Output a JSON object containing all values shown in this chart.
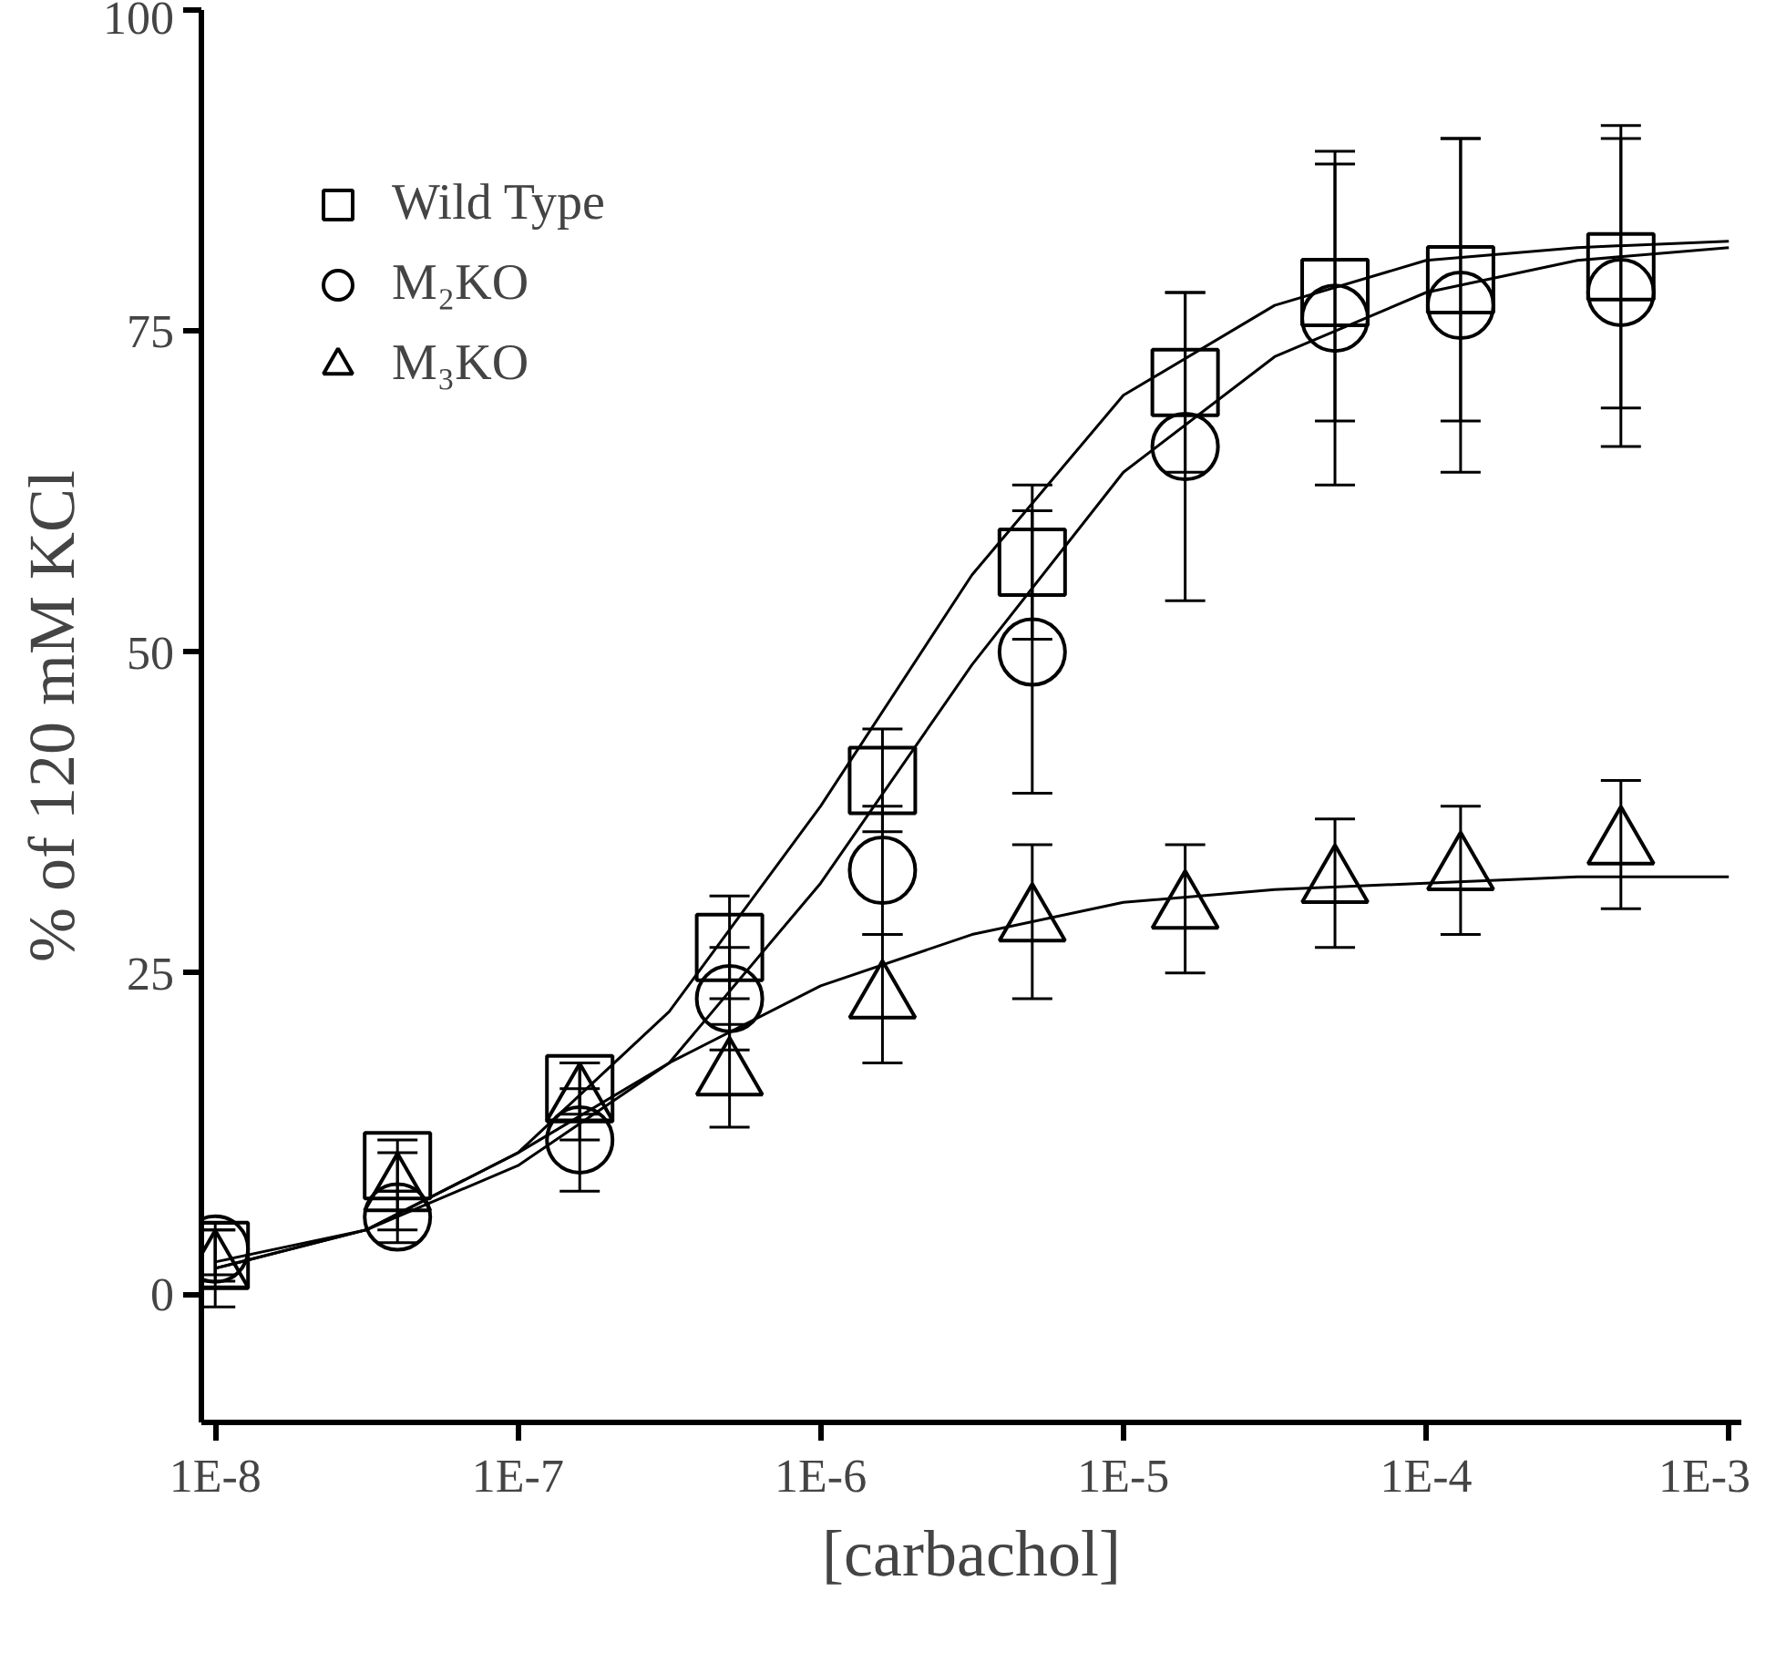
{
  "chart_data": {
    "type": "scatter",
    "xlabel": "[carbachol]",
    "ylabel": "% of 120 mM KCl",
    "log": "x",
    "xlim": [
      9e-09,
      0.0011
    ],
    "ylim": [
      -10,
      100
    ],
    "xticks": [
      {
        "value": 1e-08,
        "label": "1E-8"
      },
      {
        "value": 1e-07,
        "label": "1E-7"
      },
      {
        "value": 1e-06,
        "label": "1E-6"
      },
      {
        "value": 1e-05,
        "label": "1E-5"
      },
      {
        "value": 0.0001,
        "label": "1E-4"
      },
      {
        "value": 0.001,
        "label": "1E-3"
      }
    ],
    "yticks": [
      0,
      25,
      50,
      75,
      100
    ],
    "grid": false,
    "legend": "top left",
    "x": [
      1e-08,
      4e-08,
      1.6e-07,
      5e-07,
      1.6e-06,
      5e-06,
      1.6e-05,
      5e-05,
      0.00013,
      0.00044
    ],
    "series": [
      {
        "name": "Wild Type",
        "color": "#000000",
        "marker": "square",
        "values": [
          3,
          10,
          16,
          27,
          40,
          57,
          71,
          78,
          79,
          80
        ],
        "errors": [
          2,
          2,
          2,
          4,
          4,
          6,
          7,
          10,
          11,
          11
        ]
      },
      {
        "name": "M₂KO",
        "color": "#000000",
        "marker": "circle",
        "values": [
          3.5,
          6,
          12,
          23,
          33,
          50,
          66,
          76,
          77,
          78
        ],
        "errors": [
          2,
          2,
          4,
          4,
          5,
          11,
          12,
          13,
          13,
          12
        ]
      },
      {
        "name": "M₃KO",
        "color": "#000000",
        "marker": "triangle",
        "values": [
          2,
          8,
          15,
          17,
          23,
          29,
          30,
          32,
          33,
          35
        ],
        "errors": [
          3,
          3,
          3,
          4,
          5,
          6,
          5,
          5,
          5,
          5
        ]
      },
      {
        "type": "line",
        "color": "#000000",
        "x": [
          1e-08,
          3.16e-08,
          1e-07,
          3.16e-07,
          1e-06,
          3.16e-06,
          1e-05,
          3.16e-05,
          0.0001,
          0.000316,
          0.001
        ],
        "values": [
          2,
          5,
          11,
          22,
          38,
          56,
          70,
          77,
          80.5,
          81.5,
          82
        ]
      },
      {
        "type": "line",
        "color": "#000000",
        "x": [
          1e-08,
          3.16e-08,
          1e-07,
          3.16e-07,
          1e-06,
          3.16e-06,
          1e-05,
          3.16e-05,
          0.0001,
          0.000316,
          0.001
        ],
        "values": [
          2.5,
          5,
          10,
          18,
          32,
          49,
          64,
          73,
          78,
          80.5,
          81.5
        ]
      },
      {
        "type": "line",
        "color": "#000000",
        "x": [
          1e-08,
          3.16e-08,
          1e-07,
          3.16e-07,
          1e-06,
          3.16e-06,
          1e-05,
          3.16e-05,
          0.0001,
          0.000316,
          0.001
        ],
        "values": [
          2,
          5,
          11,
          18,
          24,
          28,
          30.5,
          31.5,
          32,
          32.5,
          32.5
        ]
      }
    ]
  }
}
